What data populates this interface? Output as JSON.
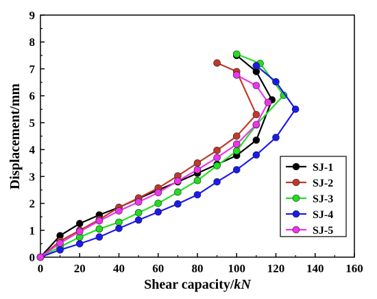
{
  "chart_data": {
    "type": "line",
    "xlabel_main": "Shear capacity/",
    "xlabel_unit": "kN",
    "ylabel": "Displacement/mm",
    "xlim": [
      0,
      160
    ],
    "ylim": [
      0,
      9
    ],
    "x_ticks": [
      0,
      20,
      40,
      60,
      80,
      100,
      120,
      140,
      160
    ],
    "y_ticks": [
      0,
      1,
      2,
      3,
      4,
      5,
      6,
      7,
      8,
      9
    ],
    "grid": false,
    "legend_position": "bottom-right",
    "series": [
      {
        "name": "SJ-1",
        "color": "#000000",
        "x": [
          0,
          10,
          20,
          30,
          40,
          50,
          60,
          70,
          80,
          90,
          100,
          110,
          118,
          110,
          100
        ],
        "y": [
          0,
          0.8,
          1.25,
          1.57,
          1.85,
          2.18,
          2.5,
          2.8,
          3.12,
          3.45,
          3.78,
          4.35,
          5.85,
          6.9,
          7.5
        ]
      },
      {
        "name": "SJ-2",
        "color": "#c0392b",
        "x": [
          0,
          10,
          20,
          30,
          40,
          50,
          60,
          70,
          80,
          90,
          100,
          110,
          100,
          90
        ],
        "y": [
          0,
          0.6,
          1.0,
          1.4,
          1.85,
          2.2,
          2.57,
          3.02,
          3.5,
          3.97,
          4.5,
          5.3,
          6.9,
          7.22
        ]
      },
      {
        "name": "SJ-3",
        "color": "#22dd22",
        "x": [
          0,
          10,
          20,
          30,
          40,
          50,
          60,
          70,
          80,
          90,
          100,
          110,
          124,
          112,
          100
        ],
        "y": [
          0,
          0.38,
          0.75,
          1.05,
          1.3,
          1.65,
          2.0,
          2.42,
          2.85,
          3.4,
          3.95,
          4.92,
          6.02,
          7.2,
          7.55
        ]
      },
      {
        "name": "SJ-4",
        "color": "#1a1aee",
        "x": [
          0,
          10,
          20,
          30,
          40,
          50,
          60,
          70,
          80,
          90,
          100,
          110,
          120,
          130,
          120,
          110
        ],
        "y": [
          0,
          0.27,
          0.5,
          0.75,
          1.07,
          1.38,
          1.68,
          1.98,
          2.32,
          2.8,
          3.25,
          3.8,
          4.45,
          5.5,
          6.52,
          7.12
        ]
      },
      {
        "name": "SJ-5",
        "color": "#ee33ee",
        "x": [
          0,
          10,
          20,
          30,
          40,
          50,
          60,
          70,
          80,
          90,
          100,
          110,
          116,
          110,
          100
        ],
        "y": [
          0,
          0.52,
          0.95,
          1.35,
          1.72,
          2.05,
          2.4,
          2.83,
          3.25,
          3.7,
          4.2,
          4.93,
          5.75,
          6.38,
          6.77
        ]
      }
    ]
  }
}
